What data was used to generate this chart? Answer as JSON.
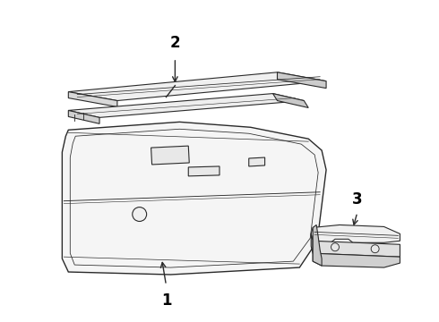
{
  "background_color": "#ffffff",
  "line_color": "#2a2a2a",
  "label_color": "#000000",
  "fill_light": "#f5f5f5",
  "fill_mid": "#e8e8e8",
  "fill_dark": "#d5d5d5",
  "parts": {
    "part1_label": "1",
    "part2_label": "2",
    "part3_label": "3"
  },
  "figsize": [
    4.9,
    3.6
  ],
  "dpi": 100
}
